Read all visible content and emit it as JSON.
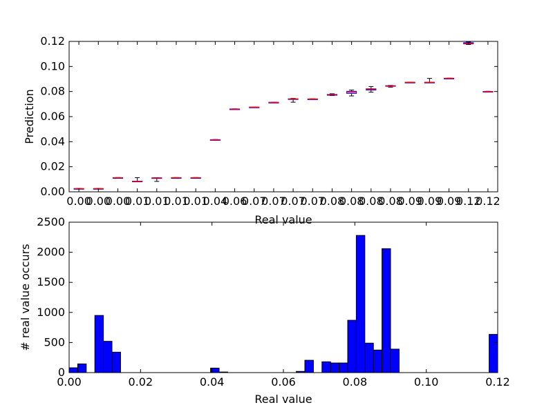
{
  "chart_data": [
    {
      "type": "box",
      "title": "",
      "xlabel": "Real value",
      "ylabel": "Prediction",
      "ylim": [
        0,
        0.12
      ],
      "yticks": [
        "0.00",
        "0.02",
        "0.04",
        "0.06",
        "0.08",
        "0.10",
        "0.12"
      ],
      "categories": [
        "0.00",
        "0.00",
        "0.00",
        "0.01",
        "0.01",
        "0.01",
        "0.01",
        "0.04",
        "0.06",
        "0.07",
        "0.07",
        "0.07",
        "0.07",
        "0.08",
        "0.08",
        "0.08",
        "0.08",
        "0.09",
        "0.09",
        "0.09",
        "0.12",
        "0.12"
      ],
      "boxes": [
        {
          "median": 0.0025,
          "q1": 0.0024,
          "q3": 0.0026,
          "wlo": 0.0023,
          "whi": 0.0027
        },
        {
          "median": 0.0025,
          "q1": 0.0024,
          "q3": 0.0026,
          "wlo": 0.0023,
          "whi": 0.0027
        },
        {
          "median": 0.0112,
          "q1": 0.0111,
          "q3": 0.0113,
          "wlo": 0.011,
          "whi": 0.0114
        },
        {
          "median": 0.0083,
          "q1": 0.0082,
          "q3": 0.0085,
          "wlo": 0.008,
          "whi": 0.0113
        },
        {
          "median": 0.011,
          "q1": 0.0108,
          "q3": 0.0112,
          "wlo": 0.0083,
          "whi": 0.0113
        },
        {
          "median": 0.0112,
          "q1": 0.0111,
          "q3": 0.0113,
          "wlo": 0.011,
          "whi": 0.0114
        },
        {
          "median": 0.0112,
          "q1": 0.0111,
          "q3": 0.0113,
          "wlo": 0.011,
          "whi": 0.0114
        },
        {
          "median": 0.0415,
          "q1": 0.0414,
          "q3": 0.0416,
          "wlo": 0.0413,
          "whi": 0.0417
        },
        {
          "median": 0.066,
          "q1": 0.0659,
          "q3": 0.0661,
          "wlo": 0.0658,
          "whi": 0.0662
        },
        {
          "median": 0.0675,
          "q1": 0.0674,
          "q3": 0.0676,
          "wlo": 0.0673,
          "whi": 0.0677
        },
        {
          "median": 0.0713,
          "q1": 0.0712,
          "q3": 0.0714,
          "wlo": 0.0711,
          "whi": 0.0715
        },
        {
          "median": 0.074,
          "q1": 0.0739,
          "q3": 0.0742,
          "wlo": 0.0715,
          "whi": 0.0745
        },
        {
          "median": 0.074,
          "q1": 0.0739,
          "q3": 0.0741,
          "wlo": 0.0738,
          "whi": 0.0742
        },
        {
          "median": 0.0773,
          "q1": 0.077,
          "q3": 0.0777,
          "wlo": 0.0768,
          "whi": 0.0782
        },
        {
          "median": 0.0795,
          "q1": 0.0785,
          "q3": 0.0802,
          "wlo": 0.0765,
          "whi": 0.0812
        },
        {
          "median": 0.0818,
          "q1": 0.0812,
          "q3": 0.0822,
          "wlo": 0.0795,
          "whi": 0.084
        },
        {
          "median": 0.0845,
          "q1": 0.0843,
          "q3": 0.0847,
          "wlo": 0.0835,
          "whi": 0.0849
        },
        {
          "median": 0.0873,
          "q1": 0.0872,
          "q3": 0.0874,
          "wlo": 0.0871,
          "whi": 0.0875
        },
        {
          "median": 0.0873,
          "q1": 0.0872,
          "q3": 0.0874,
          "wlo": 0.0871,
          "whi": 0.0905
        },
        {
          "median": 0.0905,
          "q1": 0.0904,
          "q3": 0.0906,
          "wlo": 0.0903,
          "whi": 0.0907
        },
        {
          "median": 0.1185,
          "q1": 0.118,
          "q3": 0.119,
          "wlo": 0.1175,
          "whi": 0.1195
        },
        {
          "median": 0.08,
          "q1": 0.0799,
          "q3": 0.0801,
          "wlo": 0.0798,
          "whi": 0.0802
        }
      ],
      "colors": {
        "box": "#0000ff",
        "median": "#ff0000",
        "whisker": "#000000"
      }
    },
    {
      "type": "bar",
      "title": "",
      "xlabel": "Real value",
      "ylabel": "# real value occurs",
      "xlim": [
        0,
        0.12
      ],
      "ylim": [
        0,
        2500
      ],
      "xticks": [
        "0.00",
        "0.02",
        "0.04",
        "0.06",
        "0.08",
        "0.10",
        "0.12"
      ],
      "yticks": [
        "0",
        "500",
        "1000",
        "1500",
        "2000",
        "2500"
      ],
      "bin_width": 0.0024,
      "bins": [
        {
          "x0": 0.0,
          "count": 80
        },
        {
          "x0": 0.0024,
          "count": 145
        },
        {
          "x0": 0.0072,
          "count": 950
        },
        {
          "x0": 0.0096,
          "count": 520
        },
        {
          "x0": 0.012,
          "count": 340
        },
        {
          "x0": 0.0396,
          "count": 75
        },
        {
          "x0": 0.042,
          "count": 10
        },
        {
          "x0": 0.0636,
          "count": 20
        },
        {
          "x0": 0.066,
          "count": 205
        },
        {
          "x0": 0.0708,
          "count": 180
        },
        {
          "x0": 0.0732,
          "count": 160
        },
        {
          "x0": 0.0756,
          "count": 160
        },
        {
          "x0": 0.078,
          "count": 870
        },
        {
          "x0": 0.0804,
          "count": 2280
        },
        {
          "x0": 0.0828,
          "count": 490
        },
        {
          "x0": 0.0852,
          "count": 375
        },
        {
          "x0": 0.0876,
          "count": 2060
        },
        {
          "x0": 0.09,
          "count": 390
        },
        {
          "x0": 0.1176,
          "count": 635
        }
      ],
      "colors": {
        "bar": "#0000ff",
        "edge": "#000000"
      }
    }
  ]
}
